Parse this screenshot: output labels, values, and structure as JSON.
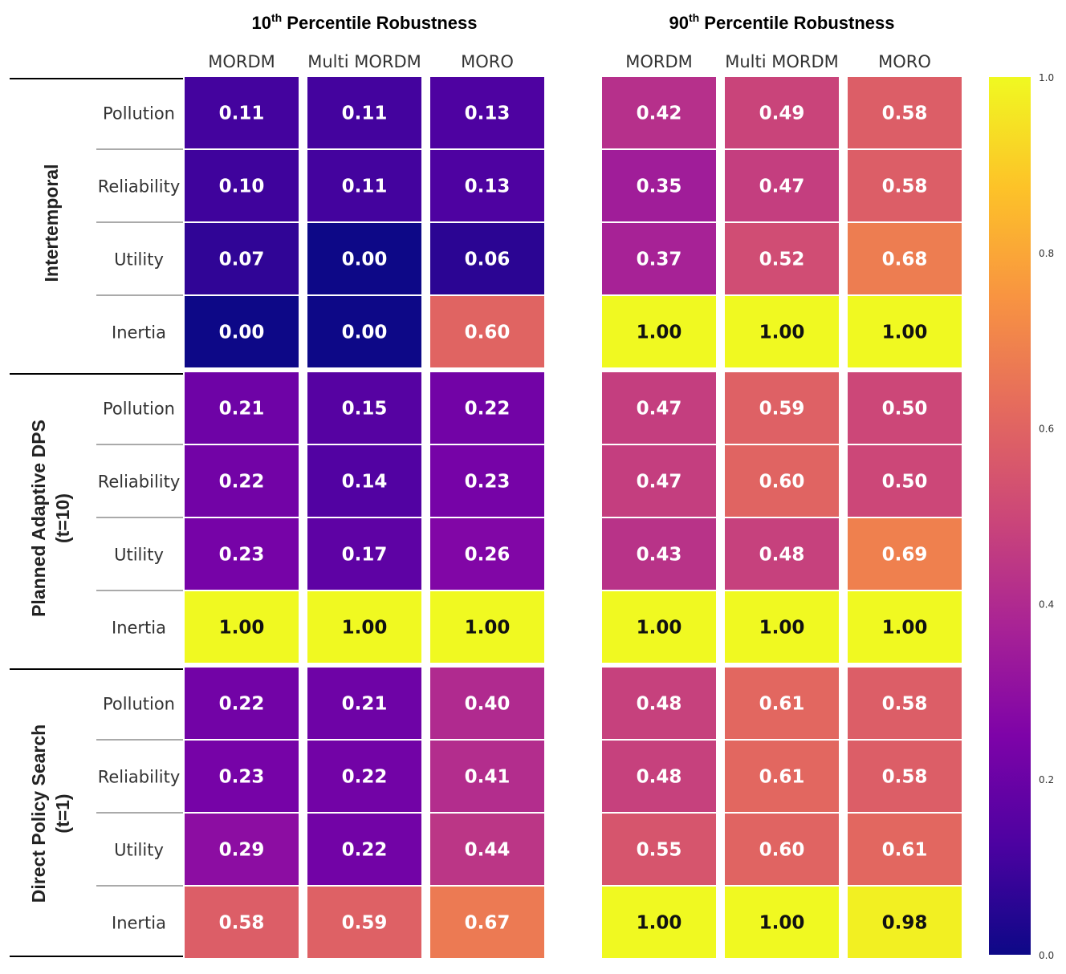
{
  "chart_data": {
    "type": "heatmap",
    "colormap": "plasma",
    "value_range": [
      0.0,
      1.0
    ],
    "colorbar_ticks": [
      "0.0",
      "0.2",
      "0.4",
      "0.6",
      "0.8",
      "1.0"
    ],
    "panel_titles": [
      {
        "pre": "10",
        "sup": "th",
        "post": " Percentile Robustness"
      },
      {
        "pre": "90",
        "sup": "th",
        "post": " Percentile Robustness"
      }
    ],
    "columns": [
      "MORDM",
      "Multi MORDM",
      "MORO"
    ],
    "row_labels": [
      "Pollution",
      "Reliability",
      "Utility",
      "Inertia"
    ],
    "groups": [
      {
        "label_lines": [
          "Intertemporal"
        ]
      },
      {
        "label_lines": [
          "Planned Adaptive DPS",
          "(t=10)"
        ]
      },
      {
        "label_lines": [
          "Direct Policy Search",
          "(t=1)"
        ]
      }
    ],
    "panels": [
      {
        "values": [
          [
            [
              0.11,
              0.11,
              0.13
            ],
            [
              0.1,
              0.11,
              0.13
            ],
            [
              0.07,
              0.0,
              0.06
            ],
            [
              0.0,
              0.0,
              0.6
            ]
          ],
          [
            [
              0.21,
              0.15,
              0.22
            ],
            [
              0.22,
              0.14,
              0.23
            ],
            [
              0.23,
              0.17,
              0.26
            ],
            [
              1.0,
              1.0,
              1.0
            ]
          ],
          [
            [
              0.22,
              0.21,
              0.4
            ],
            [
              0.23,
              0.22,
              0.41
            ],
            [
              0.29,
              0.22,
              0.44
            ],
            [
              0.58,
              0.59,
              0.67
            ]
          ]
        ]
      },
      {
        "values": [
          [
            [
              0.42,
              0.49,
              0.58
            ],
            [
              0.35,
              0.47,
              0.58
            ],
            [
              0.37,
              0.52,
              0.68
            ],
            [
              1.0,
              1.0,
              1.0
            ]
          ],
          [
            [
              0.47,
              0.59,
              0.5
            ],
            [
              0.47,
              0.6,
              0.5
            ],
            [
              0.43,
              0.48,
              0.69
            ],
            [
              1.0,
              1.0,
              1.0
            ]
          ],
          [
            [
              0.48,
              0.61,
              0.58
            ],
            [
              0.48,
              0.61,
              0.58
            ],
            [
              0.55,
              0.6,
              0.61
            ],
            [
              1.0,
              1.0,
              0.98
            ]
          ]
        ]
      }
    ]
  }
}
